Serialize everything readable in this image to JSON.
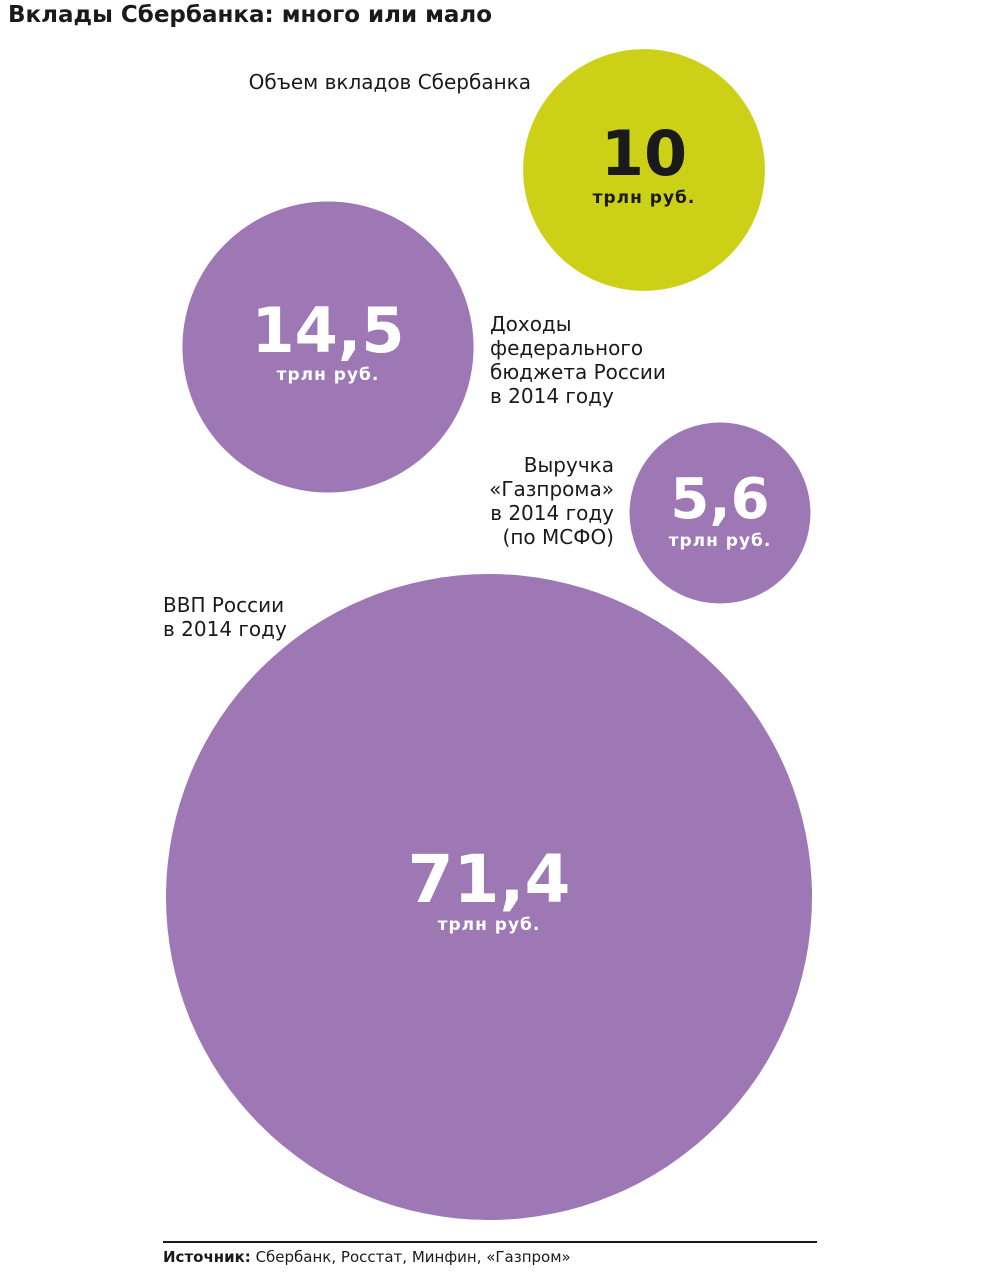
{
  "chart_data": {
    "type": "bubble",
    "title": "Вклады Сбербанка: много или мало",
    "categories": [
      "Объем вкладов Сбербанка",
      "Доходы\nфедерального\nбюджета России\nв 2014 году",
      "Выручка\n«Газпрома»\nв 2014 году\n(по МСФО)",
      "ВВП России\nв 2014 году"
    ],
    "values": [
      10,
      14.5,
      5.6,
      71.4
    ],
    "value_labels": [
      "10",
      "14,5",
      "5,6",
      "71,4"
    ],
    "unit": "трлн руб.",
    "colors": [
      "#ccd017",
      "#9e77b5",
      "#9e77b5",
      "#9e77b5"
    ],
    "source_label": "Источник:",
    "source": "Сбербанк, Росстат, Минфин, «Газпром»"
  }
}
